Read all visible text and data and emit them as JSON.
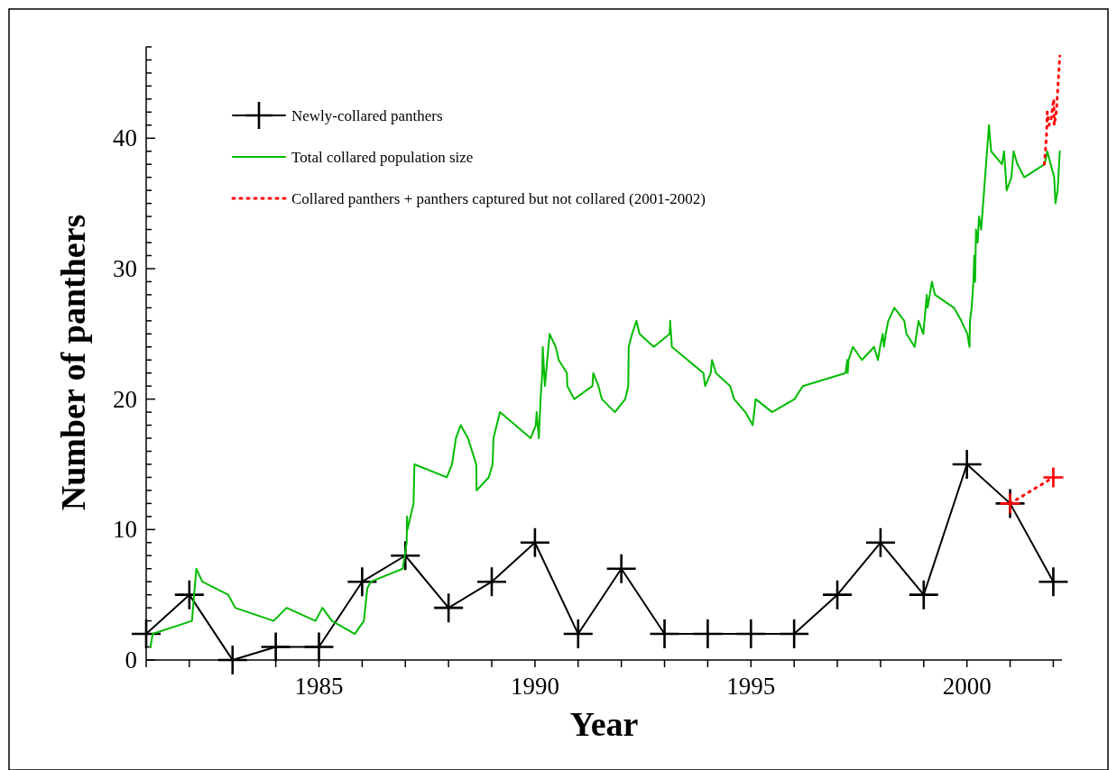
{
  "chart_data": {
    "type": "line",
    "xlabel": "Year",
    "ylabel": "Number of panthers",
    "xlim": [
      1981,
      2002.2
    ],
    "ylim": [
      0,
      47
    ],
    "xticks": [
      {
        "value": 1981,
        "label": null
      },
      {
        "value": 1982,
        "label": null
      },
      {
        "value": 1983,
        "label": null
      },
      {
        "value": 1984,
        "label": null
      },
      1985,
      {
        "value": 1986,
        "label": null
      },
      {
        "value": 1987,
        "label": null
      },
      {
        "value": 1988,
        "label": null
      },
      {
        "value": 1989,
        "label": null
      },
      1990,
      {
        "value": 1991,
        "label": null
      },
      {
        "value": 1992,
        "label": null
      },
      {
        "value": 1993,
        "label": null
      },
      {
        "value": 1994,
        "label": null
      },
      1995,
      {
        "value": 1996,
        "label": null
      },
      {
        "value": 1997,
        "label": null
      },
      {
        "value": 1998,
        "label": null
      },
      {
        "value": 1999,
        "label": null
      },
      2000,
      {
        "value": 2001,
        "label": null
      },
      {
        "value": 2002,
        "label": null
      }
    ],
    "yticks": [
      0,
      {
        "value": 1,
        "label": null
      },
      {
        "value": 2,
        "label": null
      },
      {
        "value": 3,
        "label": null
      },
      {
        "value": 4,
        "label": null
      },
      {
        "value": 5,
        "label": null
      },
      {
        "value": 6,
        "label": null
      },
      {
        "value": 7,
        "label": null
      },
      {
        "value": 8,
        "label": null
      },
      {
        "value": 9,
        "label": null
      },
      10,
      {
        "value": 11,
        "label": null
      },
      {
        "value": 12,
        "label": null
      },
      {
        "value": 13,
        "label": null
      },
      {
        "value": 14,
        "label": null
      },
      {
        "value": 15,
        "label": null
      },
      {
        "value": 16,
        "label": null
      },
      {
        "value": 17,
        "label": null
      },
      {
        "value": 18,
        "label": null
      },
      {
        "value": 19,
        "label": null
      },
      20,
      {
        "value": 21,
        "label": null
      },
      {
        "value": 22,
        "label": null
      },
      {
        "value": 23,
        "label": null
      },
      {
        "value": 24,
        "label": null
      },
      {
        "value": 25,
        "label": null
      },
      {
        "value": 26,
        "label": null
      },
      {
        "value": 27,
        "label": null
      },
      {
        "value": 28,
        "label": null
      },
      {
        "value": 29,
        "label": null
      },
      30,
      {
        "value": 31,
        "label": null
      },
      {
        "value": 32,
        "label": null
      },
      {
        "value": 33,
        "label": null
      },
      {
        "value": 34,
        "label": null
      },
      {
        "value": 35,
        "label": null
      },
      {
        "value": 36,
        "label": null
      },
      {
        "value": 37,
        "label": null
      },
      {
        "value": 38,
        "label": null
      },
      {
        "value": 39,
        "label": null
      },
      40,
      {
        "value": 41,
        "label": null
      },
      {
        "value": 42,
        "label": null
      },
      {
        "value": 43,
        "label": null
      },
      {
        "value": 44,
        "label": null
      },
      {
        "value": 45,
        "label": null
      },
      {
        "value": 46,
        "label": null
      },
      {
        "value": 47,
        "label": null
      }
    ],
    "grid": false,
    "legend": "top left",
    "series": [
      {
        "name": "Newly-collared panthers",
        "color": "#000000",
        "marker": "cross",
        "line_style": "solid",
        "x": [
          1981,
          1982,
          1983,
          1984,
          1985,
          1986,
          1987,
          1988,
          1989,
          1990,
          1991,
          1992,
          1993,
          1994,
          1995,
          1996,
          1997,
          1998,
          1999,
          2000,
          2001,
          2002
        ],
        "values": [
          2,
          5,
          0,
          1,
          1,
          6,
          8,
          4,
          6,
          9,
          2,
          7,
          2,
          2,
          2,
          2,
          5,
          9,
          5,
          15,
          12,
          6
        ]
      },
      {
        "name": "Total collared population size",
        "color": "#00bb00",
        "marker": "none",
        "line_style": "solid",
        "x": [
          1981.1,
          1981.15,
          1982.06,
          1982.16,
          1982.3,
          1982.9,
          1983.06,
          1983.95,
          1984.25,
          1984.92,
          1985.08,
          1985.3,
          1985.83,
          1986.04,
          1986.12,
          1986.2,
          1986.94,
          1987.03,
          1987.04,
          1987.05,
          1987.19,
          1987.21,
          1987.96,
          1988.08,
          1988.17,
          1988.28,
          1988.45,
          1988.64,
          1988.65,
          1988.93,
          1989.02,
          1989.04,
          1989.19,
          1989.9,
          1990.02,
          1990.04,
          1990.09,
          1990.13,
          1990.17,
          1990.18,
          1990.23,
          1990.34,
          1990.48,
          1990.55,
          1990.74,
          1990.75,
          1990.91,
          1991.33,
          1991.35,
          1991.47,
          1991.55,
          1991.85,
          1992.09,
          1992.16,
          1992.17,
          1992.25,
          1992.35,
          1992.42,
          1992.75,
          1993.12,
          1993.13,
          1993.17,
          1993.9,
          1993.94,
          1994.07,
          1994.1,
          1994.19,
          1994.52,
          1994.61,
          1994.87,
          1995.04,
          1995.11,
          1995.49,
          1996.01,
          1996.2,
          1997.19,
          1997.23,
          1997.24,
          1997.26,
          1997.36,
          1997.57,
          1997.85,
          1997.94,
          1997.99,
          1998.05,
          1998.08,
          1998.12,
          1998.18,
          1998.32,
          1998.55,
          1998.6,
          1998.79,
          1998.88,
          1998.99,
          1999.07,
          1999.09,
          1999.19,
          1999.26,
          1999.7,
          1999.87,
          2000.01,
          2000.06,
          2000.07,
          2000.11,
          2000.15,
          2000.17,
          2000.19,
          2000.21,
          2000.25,
          2000.28,
          2000.33,
          2000.51,
          2000.56,
          2000.81,
          2000.86,
          2000.92,
          2001.03,
          2001.08,
          2001.17,
          2001.33,
          2001.8,
          2001.86,
          2002.02,
          2002.05,
          2002.1,
          2002.15
        ],
        "values": [
          1,
          2,
          3,
          7,
          6,
          5,
          4,
          3,
          4,
          3,
          4,
          3,
          2,
          3,
          5.5,
          6,
          7,
          9,
          11,
          10,
          12,
          15,
          14,
          15,
          17,
          18,
          17,
          15,
          13,
          14,
          15,
          17,
          19,
          17,
          18,
          19,
          17,
          20,
          22,
          24,
          21,
          25,
          24,
          23,
          22,
          21,
          20,
          21,
          22,
          21,
          20,
          19,
          20,
          21,
          24,
          25,
          26,
          25,
          24,
          25,
          26,
          24,
          22,
          21,
          22,
          23,
          22,
          21,
          20,
          19,
          18,
          20,
          19,
          20,
          21,
          22,
          23,
          22,
          23,
          24,
          23,
          24,
          23,
          24,
          25,
          24,
          25,
          26,
          27,
          26,
          25,
          24,
          26,
          25,
          28,
          27,
          29,
          28,
          27,
          26,
          25,
          24,
          26,
          27,
          29,
          31,
          29,
          33,
          32,
          34,
          33,
          41,
          39,
          38,
          39,
          36,
          37,
          39,
          38,
          37,
          38,
          39,
          37,
          35,
          36,
          39
        ]
      },
      {
        "name": "Collared panthers + panthers captured but not collared (2001-2002)",
        "color": "#ff0000",
        "marker": "none",
        "line_style": "dotted",
        "x": [
          2001.79,
          2001.84,
          2001.86,
          2001.9,
          2001.95,
          2002.01,
          2002.02,
          2002.07,
          2002.1,
          2002.15
        ],
        "values": [
          38,
          40,
          42,
          41,
          41.5,
          43,
          41,
          42,
          43.6,
          46.3
        ]
      },
      {
        "color": "#ff0000",
        "marker": "cross",
        "line_style": "dotted",
        "x": [
          2001,
          2002
        ],
        "values": [
          12,
          14
        ]
      }
    ]
  }
}
